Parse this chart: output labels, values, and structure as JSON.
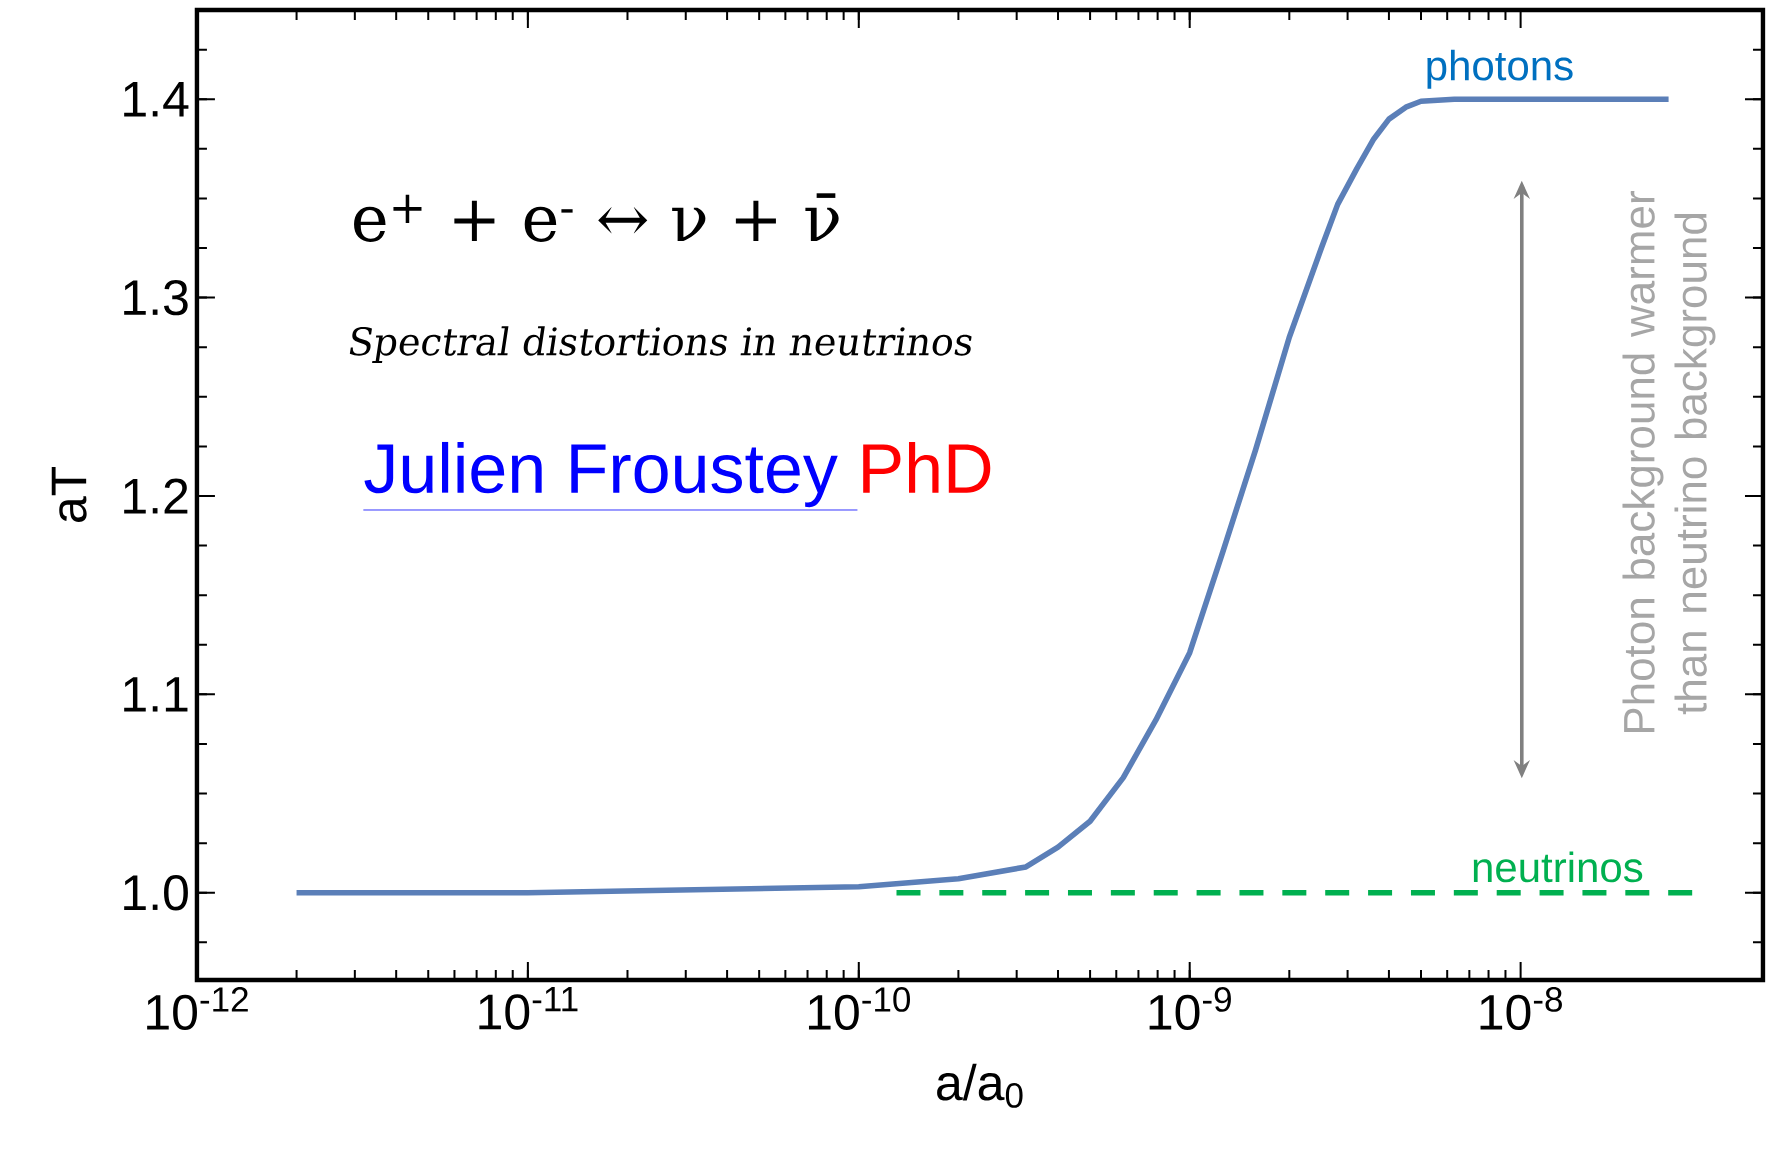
{
  "chart_data": {
    "type": "line",
    "xlabel": "a/a$_{0}$",
    "ylabel": "aT",
    "log": "x",
    "xlim": [
      1e-12,
      5.4e-08
    ],
    "ylim": [
      0.956,
      1.445
    ],
    "xticks": [
      {
        "value": 1e-12,
        "label": "10$^{-12}$"
      },
      {
        "value": 1e-11,
        "label": "10$^{-11}$"
      },
      {
        "value": 1e-10,
        "label": "10$^{-10}$"
      },
      {
        "value": 1e-09,
        "label": "10$^{-9}$"
      },
      {
        "value": 1e-08,
        "label": "10$^{-8}$"
      }
    ],
    "yticks": [
      {
        "value": 1.0,
        "label": "1.0"
      },
      {
        "value": 1.1,
        "label": "1.1"
      },
      {
        "value": 1.2,
        "label": "1.2"
      },
      {
        "value": 1.3,
        "label": "1.3"
      },
      {
        "value": 1.4,
        "label": "1.4"
      }
    ],
    "series": [
      {
        "name": "photons",
        "color": "#5b7fb8",
        "line_style": "solid",
        "x": [
          2e-12,
          1e-11,
          1e-10,
          2e-10,
          3.2e-10,
          4e-10,
          5e-10,
          6.3e-10,
          7.9e-10,
          1e-09,
          1.26e-09,
          1.58e-09,
          2e-09,
          2.5e-09,
          2.8e-09,
          3.2e-09,
          3.6e-09,
          4e-09,
          4.5e-09,
          5e-09,
          6.3e-09,
          2.8e-08
        ],
        "values": [
          1.0,
          1.0,
          1.003,
          1.007,
          1.013,
          1.023,
          1.036,
          1.058,
          1.087,
          1.121,
          1.172,
          1.223,
          1.28,
          1.325,
          1.347,
          1.365,
          1.38,
          1.39,
          1.396,
          1.399,
          1.4,
          1.4
        ]
      },
      {
        "name": "neutrinos",
        "color": "#00b050",
        "line_style": "dashed",
        "x": [
          1.3e-10,
          3.3e-08
        ],
        "values": [
          1.0,
          1.0
        ]
      }
    ],
    "annotations": [
      "e$^{+}$ + e$^{-}$ ↔ ν + ν̄",
      "Spectral distortions in neutrinos",
      "Julien Froustey ",
      "PhD",
      "Photon background warmer than neutrino background"
    ]
  }
}
